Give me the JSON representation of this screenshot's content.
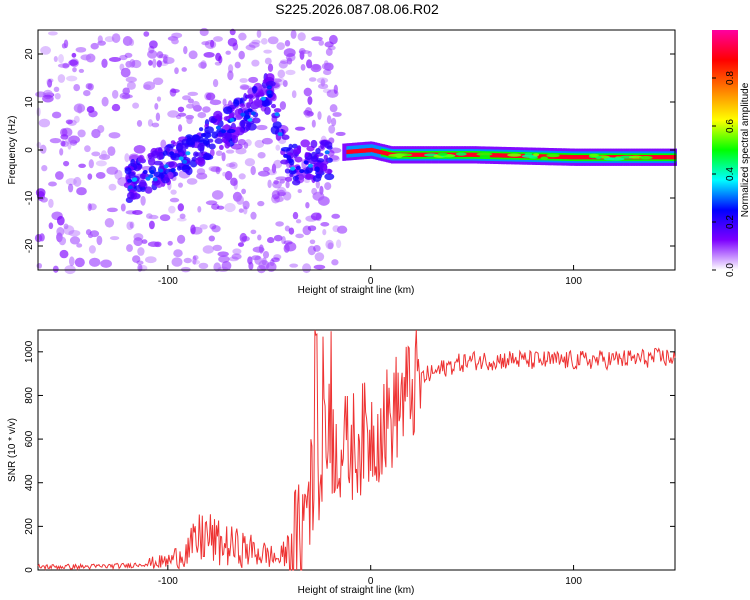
{
  "title": "S225.2026.087.08.06.R02",
  "chart_data": [
    {
      "type": "heatmap",
      "xlabel": "Height of straight line (km)",
      "ylabel": "Frequency (Hz)",
      "xlim": [
        -164,
        150
      ],
      "ylim": [
        -25,
        25
      ],
      "xticks": [
        -100,
        0,
        100
      ],
      "yticks": [
        -20,
        -10,
        0,
        10,
        20
      ],
      "grid": false,
      "colorbar": {
        "label": "Normalized spectral amplitude",
        "ticks": [
          0.0,
          0.2,
          0.4,
          0.6,
          0.8
        ],
        "range": [
          0,
          1
        ],
        "colormap": [
          "#ffffff",
          "#7d00ff",
          "#0000ff",
          "#00ffff",
          "#00ff00",
          "#ffff00",
          "#ff8000",
          "#ff0000",
          "#ff00a0"
        ]
      },
      "description_data": {
        "carrier_frequency_line": [
          [
            -15,
            -0.5
          ],
          [
            0,
            0
          ],
          [
            10,
            -1
          ],
          [
            50,
            -1
          ],
          [
            100,
            -1.5
          ],
          [
            150,
            -1.5
          ]
        ],
        "scattered_region_x": [
          -164,
          -20
        ],
        "drift_trend": [
          [
            -120,
            -7
          ],
          [
            -100,
            -3
          ],
          [
            -80,
            2
          ],
          [
            -60,
            8
          ],
          [
            -50,
            12
          ],
          [
            -40,
            -3
          ],
          [
            -20,
            -2
          ]
        ]
      }
    },
    {
      "type": "line",
      "xlabel": "Height of straight line (km)",
      "ylabel": "SNR (10 * v/v)",
      "xlim": [
        -164,
        150
      ],
      "ylim": [
        0,
        1100
      ],
      "xticks": [
        -100,
        0,
        100
      ],
      "yticks": [
        0,
        200,
        400,
        600,
        800,
        1000
      ],
      "grid": false,
      "series": [
        {
          "color": "#ee3333",
          "x": [
            -164,
            -140,
            -120,
            -100,
            -90,
            -82,
            -75,
            -65,
            -55,
            -45,
            -35,
            -30,
            -25,
            -22,
            -20,
            -15,
            -10,
            -5,
            0,
            5,
            10,
            15,
            20,
            25,
            30,
            40,
            50,
            60,
            70,
            80,
            100,
            120,
            150
          ],
          "y": [
            15,
            15,
            20,
            40,
            90,
            160,
            120,
            100,
            80,
            50,
            150,
            350,
            500,
            650,
            600,
            550,
            560,
            600,
            620,
            660,
            700,
            780,
            820,
            880,
            900,
            940,
            960,
            960,
            965,
            960,
            960,
            965,
            975
          ]
        }
      ]
    }
  ]
}
